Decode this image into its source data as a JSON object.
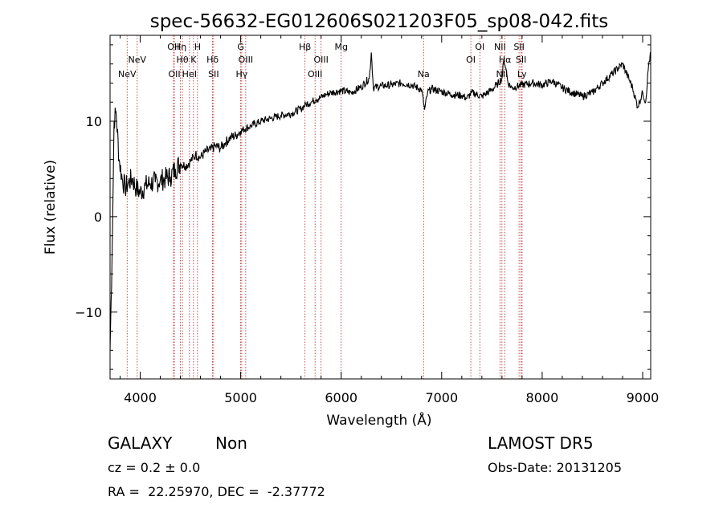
{
  "chart_data": {
    "type": "line",
    "title": "spec-56632-EG012606S021203F05_sp08-042.fits",
    "xlabel": "Wavelength (Å)",
    "ylabel": "Flux (relative)",
    "xlim": [
      3700,
      9080
    ],
    "ylim": [
      -17,
      19
    ],
    "xticks": [
      4000,
      5000,
      6000,
      7000,
      8000,
      9000
    ],
    "yticks": [
      -10,
      0,
      10
    ],
    "grid": false,
    "series": [
      {
        "color": "#000000",
        "x": [
          3700,
          3720,
          3740,
          3760,
          3790,
          3820,
          3850,
          3880,
          3920,
          3960,
          4000,
          4050,
          4100,
          4150,
          4200,
          4250,
          4300,
          4350,
          4400,
          4450,
          4500,
          4550,
          4600,
          4650,
          4700,
          4750,
          4800,
          4850,
          4900,
          4950,
          5000,
          5100,
          5200,
          5300,
          5400,
          5500,
          5600,
          5650,
          5700,
          5750,
          5800,
          5850,
          5900,
          6000,
          6100,
          6200,
          6280,
          6300,
          6320,
          6400,
          6500,
          6600,
          6700,
          6800,
          6830,
          6860,
          6900,
          7000,
          7100,
          7200,
          7250,
          7300,
          7400,
          7500,
          7550,
          7600,
          7620,
          7640,
          7660,
          7700,
          7800,
          7900,
          8000,
          8100,
          8200,
          8300,
          8400,
          8500,
          8600,
          8700,
          8800,
          8900,
          8950,
          9000,
          9030,
          9060,
          9080
        ],
        "y": [
          -14,
          -4,
          10,
          11,
          6,
          4,
          3,
          3.5,
          4,
          3,
          2.5,
          3.2,
          3.5,
          3.6,
          3.8,
          4,
          4.2,
          5,
          5.6,
          5.3,
          5.8,
          6.5,
          6.2,
          6.8,
          7,
          7.4,
          7.2,
          7.8,
          8.3,
          8.5,
          9,
          9.5,
          10,
          10.3,
          10.6,
          10.8,
          11.3,
          11.8,
          12,
          12.3,
          12.5,
          12.8,
          13,
          13.2,
          13,
          13.6,
          14.5,
          17.2,
          13.5,
          13.7,
          13.8,
          14,
          13.8,
          13.3,
          11.2,
          13,
          13.4,
          13.1,
          12.8,
          12.7,
          12.4,
          13,
          12.6,
          13.3,
          13.8,
          14.5,
          16.5,
          15.5,
          14,
          13.5,
          13.8,
          14,
          13.8,
          14.2,
          13.5,
          13,
          12.6,
          13,
          14,
          15,
          16,
          13.5,
          11.5,
          13,
          12,
          16,
          17
        ]
      }
    ],
    "lines": [
      {
        "wl": 3870,
        "label": "NeV",
        "row": 3
      },
      {
        "wl": 3970,
        "label": "NeV",
        "row": 2
      },
      {
        "wl": 4330,
        "label": "OII",
        "row": 1
      },
      {
        "wl": 4340,
        "label": "OII",
        "row": 3
      },
      {
        "wl": 4400,
        "label": "Hη",
        "row": 1
      },
      {
        "wl": 4420,
        "label": "Hθ",
        "row": 2
      },
      {
        "wl": 4490,
        "label": "HeI",
        "row": 3
      },
      {
        "wl": 4530,
        "label": "K",
        "row": 2
      },
      {
        "wl": 4570,
        "label": "H",
        "row": 1
      },
      {
        "wl": 4720,
        "label": "Hδ",
        "row": 2
      },
      {
        "wl": 4730,
        "label": "SII",
        "row": 3
      },
      {
        "wl": 5000,
        "label": "G",
        "row": 1
      },
      {
        "wl": 5010,
        "label": "Hγ",
        "row": 3
      },
      {
        "wl": 5050,
        "label": "OIII",
        "row": 2
      },
      {
        "wl": 5640,
        "label": "Hβ",
        "row": 1
      },
      {
        "wl": 5740,
        "label": "OIII",
        "row": 3
      },
      {
        "wl": 5800,
        "label": "OIII",
        "row": 2
      },
      {
        "wl": 6000,
        "label": "Mg",
        "row": 1
      },
      {
        "wl": 6820,
        "label": "Na",
        "row": 3
      },
      {
        "wl": 7290,
        "label": "OI",
        "row": 2
      },
      {
        "wl": 7380,
        "label": "OI",
        "row": 1
      },
      {
        "wl": 7580,
        "label": "NII",
        "row": 1
      },
      {
        "wl": 7600,
        "label": "NII",
        "row": 3
      },
      {
        "wl": 7630,
        "label": "Hα",
        "row": 2
      },
      {
        "wl": 7770,
        "label": "SII",
        "row": 1
      },
      {
        "wl": 7790,
        "label": "SII",
        "row": 2
      },
      {
        "wl": 7800,
        "label": "Ly",
        "row": 3
      }
    ]
  },
  "info": {
    "class_label": "GALAXY",
    "subclass_label": "Non",
    "survey": "LAMOST DR5",
    "cz": "cz = 0.2 ± 0.0",
    "obs_date": "Obs-Date: 20131205",
    "coords": "RA =  22.25970, DEC =  -2.37772"
  }
}
